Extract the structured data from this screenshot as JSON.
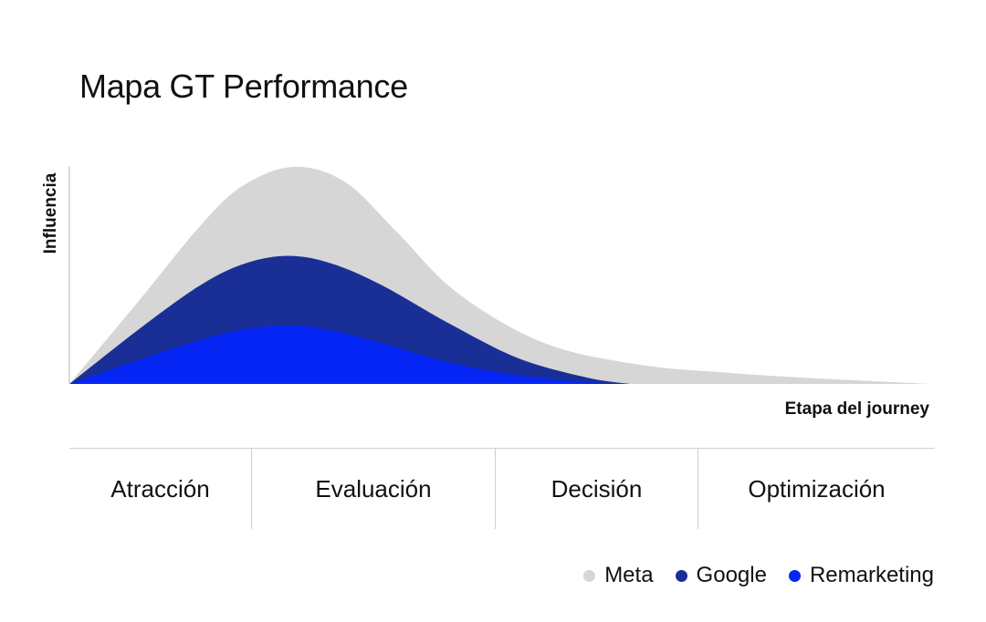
{
  "chart_data": {
    "type": "area",
    "title": "Mapa GT Performance",
    "xlabel": "Etapa del journey",
    "ylabel": "Influencia",
    "xlim": [
      0,
      10
    ],
    "ylim": [
      0,
      100
    ],
    "grid": false,
    "legend_position": "bottom-right",
    "stages": [
      "Atracción",
      "Evaluación",
      "Decisión",
      "Optimización"
    ],
    "series": [
      {
        "name": "Meta",
        "color": "#d6d6d6",
        "x": [
          0,
          0.8,
          1.5,
          2.0,
          2.6,
          3.2,
          3.8,
          4.5,
          5.5,
          6.6,
          7.7,
          8.7,
          10
        ],
        "y": [
          0,
          38,
          72,
          91,
          100,
          93,
          70,
          42,
          19,
          9,
          5,
          2.5,
          0
        ]
      },
      {
        "name": "Google",
        "color": "#1a2f96",
        "x": [
          0,
          0.8,
          1.5,
          2.0,
          2.5,
          3.0,
          3.6,
          4.4,
          5.2,
          6.0,
          6.5
        ],
        "y": [
          0,
          25,
          45,
          55,
          59,
          56,
          46,
          28,
          12,
          3,
          0
        ]
      },
      {
        "name": "Remarketing",
        "color": "#0526f5",
        "x": [
          0,
          0.8,
          1.5,
          2.0,
          2.5,
          3.0,
          3.6,
          4.4,
          5.2,
          6.0,
          6.5
        ],
        "y": [
          0,
          11,
          20,
          25,
          27,
          25,
          19,
          10,
          4,
          1,
          0
        ]
      }
    ]
  }
}
